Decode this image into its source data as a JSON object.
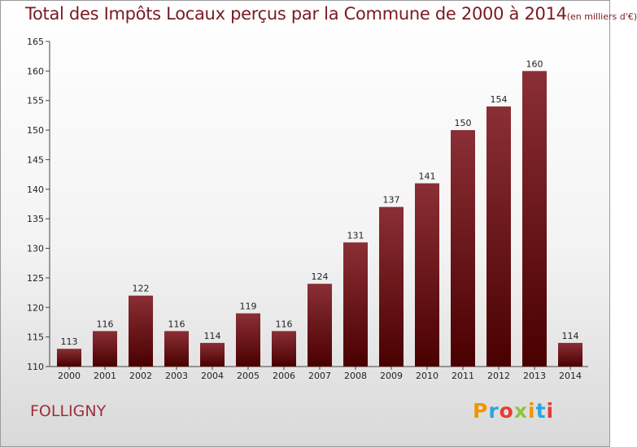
{
  "title_main": "Total des Impôts Locaux perçus par la Commune de 2000 à 2014",
  "title_unit": "(en milliers d'€)",
  "commune": "FOLLIGNY",
  "brand": "Proxiti",
  "colors": {
    "bar_top": "#8a2f35",
    "bar_bottom": "#4a0000",
    "title": "#7a1a22"
  },
  "chart_data": {
    "type": "bar",
    "title": "Total des Impôts Locaux perçus par la Commune de 2000 à 2014 (en milliers d'€)",
    "xlabel": "",
    "ylabel": "",
    "categories": [
      "2000",
      "2001",
      "2002",
      "2003",
      "2004",
      "2005",
      "2006",
      "2007",
      "2008",
      "2009",
      "2010",
      "2011",
      "2012",
      "2013",
      "2014"
    ],
    "values": [
      113,
      116,
      122,
      116,
      114,
      119,
      116,
      124,
      131,
      137,
      141,
      150,
      154,
      160,
      114
    ],
    "ylim": [
      110,
      165
    ],
    "yticks": [
      110,
      115,
      120,
      125,
      130,
      135,
      140,
      145,
      150,
      155,
      160,
      165
    ],
    "grid": false,
    "legend": "none"
  }
}
